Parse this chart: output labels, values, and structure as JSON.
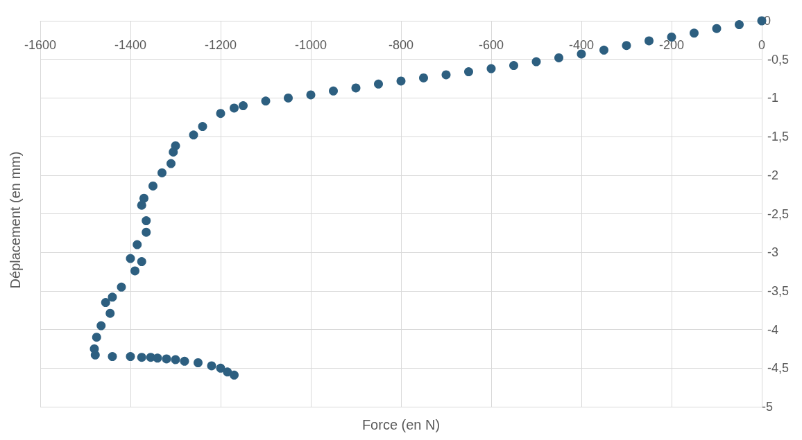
{
  "chart_data": {
    "type": "scatter",
    "xlabel": "Force (en N)",
    "ylabel": "Déplacement (en mm)",
    "xlim": [
      -1600,
      0
    ],
    "xticks": [
      -1600,
      -1400,
      -1200,
      -1000,
      -800,
      -600,
      -400,
      -200,
      0
    ],
    "ylim": [
      -5,
      0
    ],
    "yticks": [
      0,
      {
        "value": -0.5,
        "label": "-0,5"
      },
      -1,
      {
        "value": -1.5,
        "label": "-1,5"
      },
      -2,
      {
        "value": -2.5,
        "label": "-2,5"
      },
      -3,
      {
        "value": -3.5,
        "label": "-3,5"
      },
      -4,
      {
        "value": -4.5,
        "label": "-4,5"
      },
      -5
    ],
    "grid": true,
    "marker": "circle",
    "series": [
      {
        "color": "#2d5f80",
        "x": [
          0,
          -50,
          -100,
          -150,
          -200,
          -250,
          -300,
          -350,
          -400,
          -450,
          -500,
          -550,
          -600,
          -650,
          -700,
          -750,
          -800,
          -850,
          -900,
          -950,
          -1000,
          -1050,
          -1100,
          -1150,
          -1170,
          -1200,
          -1240,
          -1260,
          -1300,
          -1305,
          -1310,
          -1330,
          -1350,
          -1370,
          -1375,
          -1365,
          -1365,
          -1385,
          -1400,
          -1375,
          -1390,
          -1420,
          -1440,
          -1455,
          -1445,
          -1465,
          -1475,
          -1480,
          -1478,
          -1440,
          -1400,
          -1375,
          -1355,
          -1340,
          -1320,
          -1300,
          -1280,
          -1250,
          -1220,
          -1200,
          -1185,
          -1170
        ],
        "values": [
          0,
          -0.05,
          -0.1,
          -0.16,
          -0.21,
          -0.26,
          -0.32,
          -0.38,
          -0.43,
          -0.48,
          -0.53,
          -0.58,
          -0.62,
          -0.66,
          -0.7,
          -0.74,
          -0.78,
          -0.82,
          -0.87,
          -0.91,
          -0.96,
          -1,
          -1.04,
          -1.1,
          -1.13,
          -1.2,
          -1.37,
          -1.48,
          -1.62,
          -1.7,
          -1.85,
          -1.97,
          -2.14,
          -2.3,
          -2.39,
          -2.59,
          -2.74,
          -2.9,
          -3.08,
          -3.12,
          -3.24,
          -3.45,
          -3.58,
          -3.65,
          -3.79,
          -3.95,
          -4.1,
          -4.25,
          -4.33,
          -4.35,
          -4.35,
          -4.36,
          -4.36,
          -4.37,
          -4.38,
          -4.39,
          -4.41,
          -4.43,
          -4.47,
          -4.5,
          -4.55,
          -4.59
        ]
      }
    ]
  }
}
